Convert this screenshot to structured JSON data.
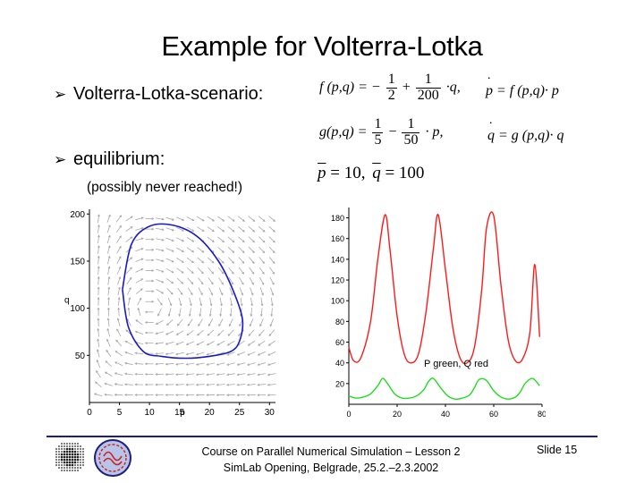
{
  "title": "Example for Volterra-Lotka",
  "bullets": {
    "marker": "➢",
    "scenario_label": "Volterra-Lotka-scenario:",
    "equilibrium_label": "equilibrium:",
    "equilibrium_note": "(possibly never reached!)"
  },
  "equations": {
    "f_lhs": "f (p,q) = −",
    "f_frac1_num": "1",
    "f_frac1_den": "2",
    "f_plus": "+",
    "f_frac2_num": "1",
    "f_frac2_den": "200",
    "f_tail": "·q,",
    "pdot_rhs": "= f (p,q)· p",
    "g_lhs": "g(p,q) =",
    "g_frac1_num": "1",
    "g_frac1_den": "5",
    "g_minus": "−",
    "g_frac2_num": "1",
    "g_frac2_den": "50",
    "g_tail": "· p,",
    "qdot_rhs": "= g (p,q)· q",
    "pbar_eq": "= 10,",
    "qbar_eq": "= 100",
    "p_symbol": "p",
    "q_symbol": "q"
  },
  "phase_plot": {
    "x_ticks": [
      "0",
      "5",
      "10",
      "15",
      "20",
      "25",
      "30"
    ],
    "y_ticks": [
      "50",
      "100",
      "150",
      "200"
    ],
    "xlabel": "p",
    "ylabel": "q",
    "orbit_color": "#1a1acc",
    "arrow_color": "#a8a8a8"
  },
  "time_plot": {
    "x_ticks": [
      "0",
      "20",
      "40",
      "60",
      "80"
    ],
    "y_ticks": [
      "20",
      "40",
      "60",
      "80",
      "100",
      "120",
      "140",
      "160",
      "180"
    ],
    "legend_text": "P green, Q red",
    "q_color": "#ff1a1a",
    "p_color": "#22dd22"
  },
  "chart_data": [
    {
      "type": "line",
      "title": "",
      "xlabel": "p",
      "ylabel": "q",
      "xlim": [
        0,
        31
      ],
      "ylim": [
        0,
        205
      ],
      "series": [
        {
          "name": "",
          "x": [
            5.5,
            7,
            10,
            14,
            18,
            21.5,
            24,
            25.5,
            25,
            23.5,
            20,
            16,
            12,
            9,
            6.5,
            5.5
          ],
          "y": [
            120,
            168,
            187,
            188,
            176,
            150,
            118,
            88,
            65,
            54,
            49,
            47,
            49,
            54,
            80,
            120
          ]
        }
      ]
    },
    {
      "type": "line",
      "title": "",
      "xlabel": "",
      "ylabel": "",
      "xlim": [
        0,
        80
      ],
      "ylim": [
        0,
        190
      ],
      "series": [
        {
          "name": "Q",
          "x": [
            0,
            2,
            5,
            9,
            12,
            15,
            17,
            20,
            23,
            26,
            29,
            32,
            35,
            37,
            40,
            43,
            46,
            49,
            52,
            55,
            57,
            60,
            63,
            66,
            69,
            72,
            75,
            77,
            79
          ],
          "y": [
            55,
            42,
            45,
            80,
            140,
            183,
            150,
            85,
            48,
            40,
            50,
            90,
            150,
            183,
            130,
            75,
            45,
            40,
            55,
            110,
            170,
            182,
            115,
            62,
            42,
            44,
            70,
            135,
            65
          ]
        },
        {
          "name": "P",
          "x": [
            0,
            3,
            6,
            9,
            12,
            14,
            16,
            19,
            22,
            25,
            28,
            31,
            33,
            35,
            38,
            41,
            44,
            47,
            50,
            52,
            54,
            57,
            60,
            63,
            66,
            69,
            71,
            73,
            76,
            79
          ],
          "y": [
            8,
            6,
            7,
            10,
            18,
            25,
            20,
            10,
            6,
            6,
            8,
            14,
            22,
            25,
            16,
            8,
            5,
            6,
            9,
            16,
            24,
            23,
            13,
            7,
            5,
            7,
            12,
            20,
            25,
            18
          ]
        }
      ]
    }
  ],
  "footer": {
    "line1": "Course on Parallel Numerical Simulation – Lesson 2",
    "line2": "SimLab Opening, Belgrade, 25.2.–2.3.2002",
    "slide": "Slide 15"
  }
}
